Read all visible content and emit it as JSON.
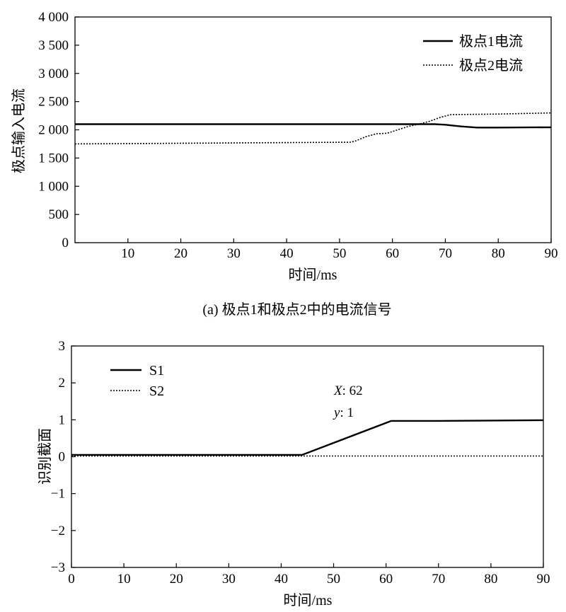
{
  "chart_data": [
    {
      "type": "line",
      "xlabel": "时间/ms",
      "ylabel": "极点输入电流",
      "caption": "(a) 极点1和极点2中的电流信号",
      "xlim": [
        0,
        90
      ],
      "ylim": [
        0,
        4000
      ],
      "x_ticks": [
        {
          "value": 10,
          "label": "10"
        },
        {
          "value": 20,
          "label": "20"
        },
        {
          "value": 30,
          "label": "30"
        },
        {
          "value": 40,
          "label": "40"
        },
        {
          "value": 50,
          "label": "50"
        },
        {
          "value": 60,
          "label": "60"
        },
        {
          "value": 70,
          "label": "70"
        },
        {
          "value": 80,
          "label": "80"
        },
        {
          "value": 90,
          "label": "90"
        }
      ],
      "y_ticks": [
        {
          "value": 0,
          "label": "0"
        },
        {
          "value": 500,
          "label": "500"
        },
        {
          "value": 1000,
          "label": "1 000"
        },
        {
          "value": 1500,
          "label": "1 500"
        },
        {
          "value": 2000,
          "label": "2 000"
        },
        {
          "value": 2500,
          "label": "2 500"
        },
        {
          "value": 3000,
          "label": "3 000"
        },
        {
          "value": 3500,
          "label": "3 500"
        },
        {
          "value": 4000,
          "label": "4 000"
        }
      ],
      "legend_position": "top-right",
      "grid": false,
      "series": [
        {
          "name": "极点1电流",
          "style": "solid",
          "x": [
            0,
            68,
            70,
            73,
            76,
            80,
            90
          ],
          "y": [
            2100,
            2100,
            2090,
            2060,
            2040,
            2040,
            2045
          ]
        },
        {
          "name": "极点2电流",
          "style": "dotted",
          "x": [
            0,
            52,
            53,
            55,
            57,
            59,
            61,
            63,
            65,
            67,
            69,
            71,
            80,
            90
          ],
          "y": [
            1750,
            1780,
            1800,
            1880,
            1930,
            1940,
            2000,
            2060,
            2100,
            2150,
            2220,
            2270,
            2280,
            2300
          ]
        }
      ]
    },
    {
      "type": "line",
      "xlabel": "时间/ms",
      "ylabel": "识别截面",
      "xlim": [
        0,
        90
      ],
      "ylim": [
        -3,
        3
      ],
      "x_ticks": [
        {
          "value": 0,
          "label": "0"
        },
        {
          "value": 10,
          "label": "10"
        },
        {
          "value": 20,
          "label": "20"
        },
        {
          "value": 30,
          "label": "30"
        },
        {
          "value": 40,
          "label": "40"
        },
        {
          "value": 50,
          "label": "50"
        },
        {
          "value": 60,
          "label": "60"
        },
        {
          "value": 70,
          "label": "70"
        },
        {
          "value": 80,
          "label": "80"
        },
        {
          "value": 90,
          "label": "90"
        }
      ],
      "y_ticks": [
        {
          "value": 3,
          "label": "3"
        },
        {
          "value": 2,
          "label": "2"
        },
        {
          "value": 1,
          "label": "1"
        },
        {
          "value": 0,
          "label": "0"
        },
        {
          "value": -1,
          "label": "−1"
        },
        {
          "value": -2,
          "label": "−2"
        },
        {
          "value": -3,
          "label": "−3"
        }
      ],
      "legend_position": "top-left",
      "grid": false,
      "annotation": {
        "x_label": "X",
        "x_value": ": 62",
        "y_label": "y",
        "y_value": ": 1"
      },
      "series": [
        {
          "name": "S1",
          "style": "solid",
          "x": [
            0,
            44,
            61,
            70,
            80,
            90
          ],
          "y": [
            0.05,
            0.05,
            0.97,
            0.97,
            0.98,
            0.99
          ]
        },
        {
          "name": "S2",
          "style": "dotted",
          "x": [
            0,
            90
          ],
          "y": [
            0.02,
            0.02
          ]
        }
      ]
    }
  ]
}
